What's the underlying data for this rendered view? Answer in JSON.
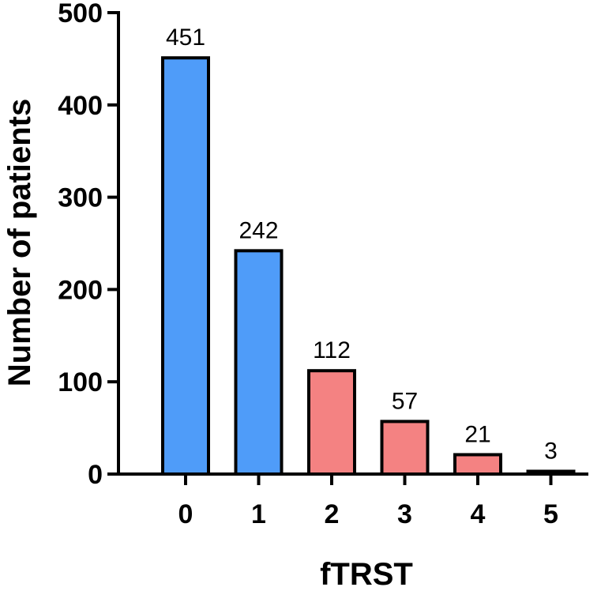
{
  "chart_data": {
    "type": "bar",
    "title": "",
    "xlabel": "fTRST",
    "ylabel": "Number of patients",
    "categories": [
      "0",
      "1",
      "2",
      "3",
      "4",
      "5"
    ],
    "values": [
      451,
      242,
      112,
      57,
      21,
      3
    ],
    "data_labels": [
      "451",
      "242",
      "112",
      "57",
      "21",
      "3"
    ],
    "bar_colors": [
      "#4f9cf9",
      "#4f9cf9",
      "#f48282",
      "#f48282",
      "#f48282",
      "#f48282"
    ],
    "ylim": [
      0,
      500
    ],
    "yticks": [
      0,
      100,
      200,
      300,
      400,
      500
    ],
    "ytick_labels": [
      "0",
      "100",
      "200",
      "300",
      "400",
      "500"
    ],
    "grid": false,
    "legend": "none"
  }
}
